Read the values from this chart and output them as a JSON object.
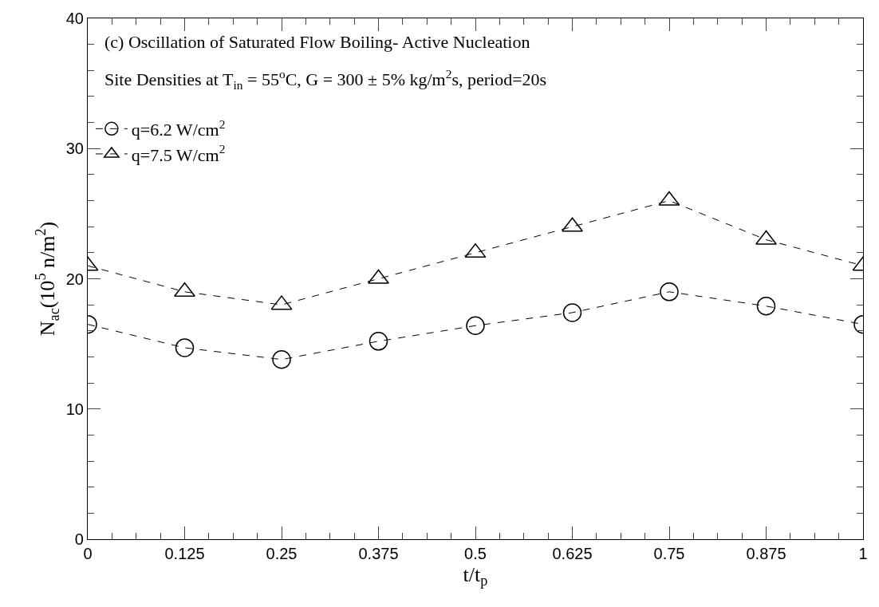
{
  "chart_data": {
    "type": "line",
    "xlabel": "t/t$_{p}$",
    "ylabel": "N$_{ac}$(10$^{5}$ n/m$^{2}$)",
    "annotations": [
      "(c) Oscillation of Saturated Flow Boiling- Active Nucleation",
      "Site Densities at T$_{in}$ = 55$^{o}$C, G = 300 ± 5% kg/m$^{2}$s, period=20s"
    ],
    "x": [
      0,
      0.125,
      0.25,
      0.375,
      0.5,
      0.625,
      0.75,
      0.875,
      1
    ],
    "series": [
      {
        "name": "q=6.2 W/cm$^{2}$",
        "color": "#000000",
        "marker": "circle",
        "values": [
          16.5,
          14.7,
          13.8,
          15.2,
          16.4,
          17.4,
          19.0,
          17.9,
          16.5
        ]
      },
      {
        "name": "q=7.5 W/cm$^{2}$",
        "color": "#000000",
        "marker": "triangle",
        "values": [
          21,
          19,
          18,
          20,
          22,
          24,
          26,
          23,
          21
        ]
      }
    ],
    "xlim": [
      0,
      1
    ],
    "xticks": [
      0,
      0.125,
      0.25,
      0.375,
      0.5,
      0.625,
      0.75,
      0.875,
      1
    ],
    "ylim": [
      0,
      40
    ],
    "yticks": [
      0,
      10,
      20,
      30,
      40
    ],
    "grid": false,
    "legend": "top left",
    "line_style": "dashed"
  }
}
